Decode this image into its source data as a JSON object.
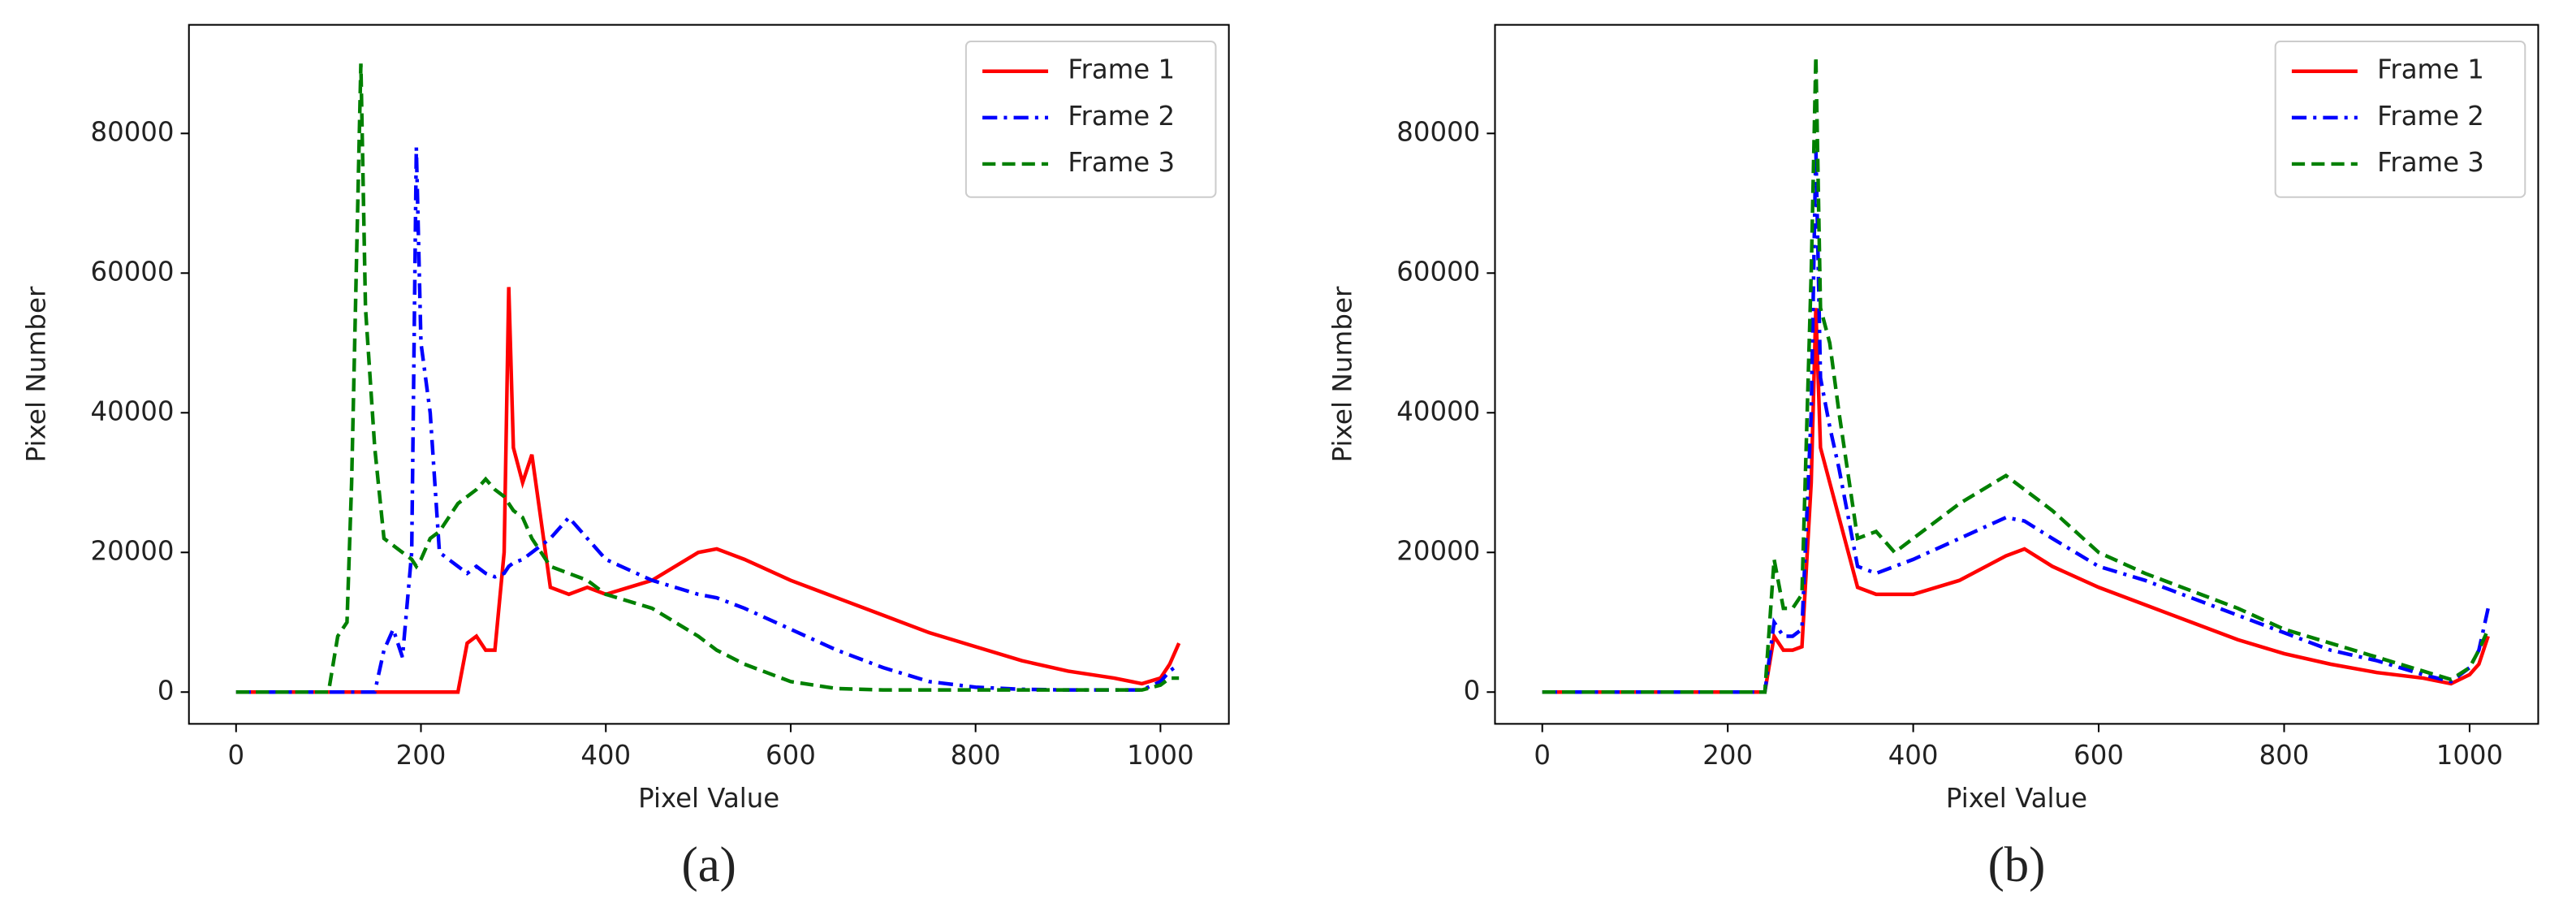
{
  "chart_data": [
    {
      "type": "line",
      "label": "(a)",
      "xlabel": "Pixel Value",
      "ylabel": "Pixel Number",
      "xlim": [
        -51,
        1074
      ],
      "ylim": [
        -4550,
        95550
      ],
      "xticks": [
        0,
        200,
        400,
        600,
        800,
        1000
      ],
      "yticks": [
        0,
        20000,
        40000,
        60000,
        80000
      ],
      "legend": "upper right",
      "x": [
        0,
        100,
        110,
        120,
        125,
        130,
        135,
        140,
        150,
        160,
        170,
        180,
        190,
        195,
        200,
        210,
        220,
        240,
        250,
        260,
        270,
        280,
        290,
        295,
        300,
        310,
        320,
        340,
        360,
        380,
        400,
        450,
        500,
        520,
        550,
        600,
        650,
        700,
        750,
        800,
        850,
        900,
        950,
        980,
        1000,
        1010,
        1020
      ],
      "series": [
        {
          "name": "Frame 1",
          "color": "#ff0000",
          "linestyle": "-",
          "values": [
            0,
            0,
            0,
            0,
            0,
            0,
            0,
            0,
            0,
            0,
            0,
            0,
            0,
            0,
            0,
            0,
            0,
            0,
            7000,
            8000,
            6000,
            6000,
            20000,
            58000,
            35000,
            30000,
            34000,
            15000,
            14000,
            15000,
            14000,
            16000,
            20000,
            20500,
            19000,
            16000,
            13500,
            11000,
            8500,
            6500,
            4500,
            3000,
            2000,
            1200,
            2000,
            4000,
            7000
          ]
        },
        {
          "name": "Frame 2",
          "color": "#0000ff",
          "linestyle": "-.",
          "values": [
            0,
            0,
            0,
            0,
            0,
            0,
            0,
            0,
            0,
            6000,
            9000,
            5000,
            20000,
            78000,
            50000,
            40000,
            20000,
            18000,
            17000,
            18000,
            17000,
            16500,
            17000,
            18000,
            18500,
            19000,
            20000,
            22000,
            25000,
            22000,
            19000,
            16000,
            14000,
            13500,
            12000,
            9000,
            6000,
            3500,
            1500,
            700,
            400,
            300,
            300,
            300,
            1500,
            3000,
            4000
          ]
        },
        {
          "name": "Frame 3",
          "color": "#008000",
          "linestyle": "--",
          "values": [
            0,
            0,
            8000,
            10000,
            30000,
            60000,
            90000,
            55000,
            35000,
            22000,
            21000,
            20000,
            19000,
            18000,
            19000,
            22000,
            23000,
            27000,
            28000,
            29000,
            30500,
            29000,
            28000,
            27000,
            26000,
            25000,
            22000,
            18000,
            17000,
            16000,
            14000,
            12000,
            8000,
            6000,
            4000,
            1500,
            500,
            300,
            300,
            300,
            300,
            300,
            300,
            300,
            1000,
            2000,
            2000
          ]
        }
      ]
    },
    {
      "type": "line",
      "label": "(b)",
      "xlabel": "Pixel Value",
      "ylabel": "Pixel Number",
      "xlim": [
        -51,
        1074
      ],
      "ylim": [
        -4550,
        95550
      ],
      "xticks": [
        0,
        200,
        400,
        600,
        800,
        1000
      ],
      "yticks": [
        0,
        20000,
        40000,
        60000,
        80000
      ],
      "legend": "upper right",
      "x": [
        0,
        100,
        200,
        240,
        250,
        260,
        270,
        280,
        290,
        295,
        300,
        310,
        320,
        340,
        360,
        380,
        400,
        450,
        500,
        520,
        550,
        600,
        650,
        700,
        750,
        800,
        850,
        900,
        950,
        980,
        1000,
        1010,
        1020
      ],
      "series": [
        {
          "name": "Frame 1",
          "color": "#ff0000",
          "linestyle": "-",
          "values": [
            0,
            0,
            0,
            0,
            8000,
            6000,
            6000,
            6500,
            30000,
            55000,
            35000,
            30000,
            25000,
            15000,
            14000,
            14000,
            14000,
            16000,
            19500,
            20500,
            18000,
            15000,
            12500,
            10000,
            7500,
            5500,
            4000,
            2800,
            2000,
            1200,
            2500,
            4000,
            8000
          ]
        },
        {
          "name": "Frame 2",
          "color": "#0000ff",
          "linestyle": "-.",
          "values": [
            0,
            0,
            0,
            0,
            10000,
            8000,
            8000,
            9000,
            40000,
            78000,
            45000,
            38000,
            32000,
            18000,
            17000,
            18000,
            19000,
            22000,
            25000,
            24500,
            22000,
            18000,
            16000,
            13500,
            11000,
            8500,
            6000,
            4500,
            2500,
            1500,
            3500,
            6000,
            12000
          ]
        },
        {
          "name": "Frame 3",
          "color": "#008000",
          "linestyle": "--",
          "values": [
            0,
            0,
            0,
            0,
            19000,
            12000,
            12000,
            14000,
            60000,
            91000,
            55000,
            50000,
            40000,
            22000,
            23000,
            20000,
            22000,
            27000,
            31000,
            29000,
            26000,
            20000,
            17000,
            14500,
            12000,
            9000,
            7000,
            5000,
            3000,
            1800,
            3500,
            6000,
            9000
          ]
        }
      ]
    }
  ]
}
